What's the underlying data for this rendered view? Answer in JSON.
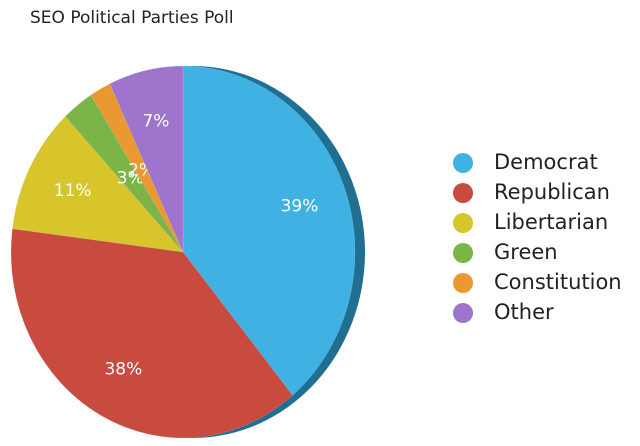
{
  "chart_data": {
    "type": "pie",
    "title": "SEO Political Parties Poll",
    "categories": [
      "Democrat",
      "Republican",
      "Libertarian",
      "Green",
      "Constitution",
      "Other"
    ],
    "values": [
      39,
      38,
      11,
      3,
      2,
      7
    ],
    "value_labels": [
      "39%",
      "38%",
      "11%",
      "3%",
      "2%",
      "7%"
    ],
    "colors": [
      "#3fb1e2",
      "#c94a3e",
      "#d8c52c",
      "#7bb547",
      "#e9992f",
      "#9f74cc"
    ],
    "legend": "right"
  }
}
